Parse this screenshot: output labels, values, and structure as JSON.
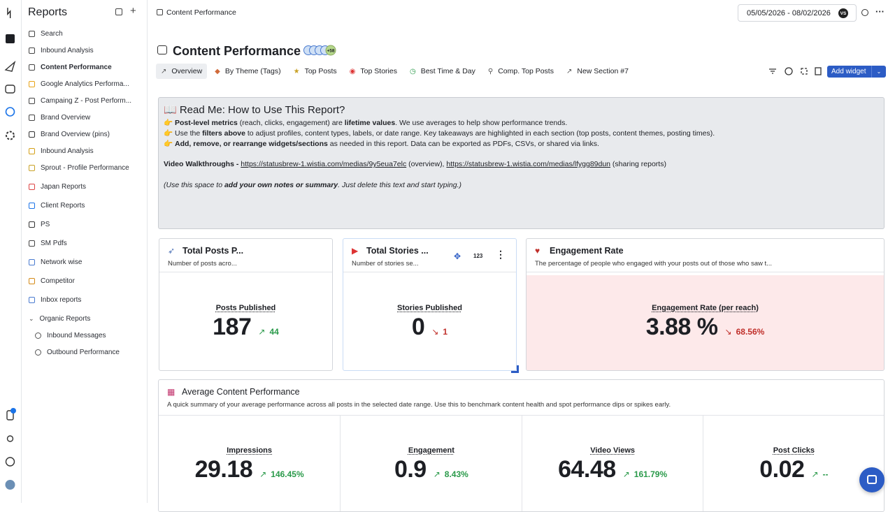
{
  "sidebar": {
    "title": "Reports",
    "items": [
      {
        "label": "Search"
      },
      {
        "label": "Inbound Analysis"
      },
      {
        "label": "Content Performance",
        "active": true
      },
      {
        "label": "Google Analytics Performa..."
      },
      {
        "label": "Campaing Z - Post Perform..."
      },
      {
        "label": "Brand Overview"
      },
      {
        "label": "Brand Overview (pins)"
      },
      {
        "label": "Inbound Analysis"
      },
      {
        "label": "Sprout - Profile Performance"
      },
      {
        "label": "Japan Reports"
      },
      {
        "label": "Client Reports"
      },
      {
        "label": "PS"
      },
      {
        "label": "SM Pdfs"
      },
      {
        "label": "Network wise"
      },
      {
        "label": "Competitor"
      },
      {
        "label": "Inbox reports"
      },
      {
        "label": "Organic Reports",
        "children": [
          {
            "label": "Inbound Messages"
          },
          {
            "label": "Outbound Performance"
          }
        ]
      }
    ]
  },
  "topbar": {
    "breadcrumb": "Content Performance",
    "date_range": "05/05/2026 - 08/02/2026",
    "avatar": "VS"
  },
  "header": {
    "title": "Content Performance",
    "badge": "+58"
  },
  "tabs": [
    "Overview",
    "By Theme (Tags)",
    "Top Posts",
    "Top Stories",
    "Best Time & Day",
    "Comp. Top Posts",
    "New Section #7"
  ],
  "add_widget": "Add widget",
  "readme": {
    "title": "📖 Read Me: How to Use This Report?",
    "lines": [
      {
        "segments": [
          {
            "text": "👉 "
          },
          {
            "bold": "Post-level metrics"
          },
          {
            "text": " (reach, clicks, engagement) are "
          },
          {
            "bold": "lifetime values"
          },
          {
            "text": ". We use averages to help show performance trends."
          }
        ]
      },
      {
        "segments": [
          {
            "text": "👉 Use the "
          },
          {
            "bold": "filters above"
          },
          {
            "text": " to adjust profiles, content types, labels, or date range. Key takeaways are highlighted in each section (top posts, content themes, posting times)."
          }
        ]
      },
      {
        "segments": [
          {
            "text": "👉 "
          },
          {
            "bold": "Add, remove, or rearrange widgets/sections"
          },
          {
            "text": " as needed in this report. Data can be exported as PDFs, CSVs, or shared via links."
          }
        ]
      },
      {
        "segments": [
          {
            "bold": "Video Walkthroughs - "
          },
          {
            "link": "https://statusbrew-1.wistia.com/medias/9y5eua7elc"
          },
          {
            "text": " (overview), "
          },
          {
            "link": "https://statusbrew-1.wistia.com/medias/lfygg89dun"
          },
          {
            "text": " (sharing reports)"
          }
        ]
      },
      {
        "italic": true,
        "segments": [
          {
            "text": "(Use this space to "
          },
          {
            "bold": "add your own notes or summary"
          },
          {
            "text": ". Just delete this text and start typing.)"
          }
        ]
      }
    ]
  },
  "widgets": [
    {
      "title": "Total Posts P...",
      "subtitle": "Number of posts acro...",
      "metric": "Posts Published",
      "value": "187",
      "change": "44",
      "direction": "up"
    },
    {
      "title": "Total Stories ...",
      "subtitle": "Number of stories se...",
      "toolbar_label": "123",
      "metric": "Stories Published",
      "value": "0",
      "change": "1",
      "direction": "down"
    },
    {
      "title": "Engagement Rate",
      "subtitle": "The percentage of people who engaged with your posts out of those who saw t...",
      "metric": "Engagement Rate (per reach)",
      "value": "3.88 %",
      "change": "68.56%",
      "direction": "down",
      "highlight": true
    }
  ],
  "average": {
    "title": "Average Content Performance",
    "subtitle": "A quick summary of your average performance across all posts in the selected date range. Use this to benchmark content health and spot performance dips or spikes early.",
    "metrics": [
      {
        "metric": "Impressions",
        "value": "29.18",
        "change": "146.45%",
        "direction": "up"
      },
      {
        "metric": "Engagement",
        "value": "0.9",
        "change": "8.43%",
        "direction": "up"
      },
      {
        "metric": "Video Views",
        "value": "64.48",
        "change": "161.79%",
        "direction": "up"
      },
      {
        "metric": "Post Clicks",
        "value": "0.02",
        "change": "--",
        "direction": "up"
      }
    ]
  }
}
